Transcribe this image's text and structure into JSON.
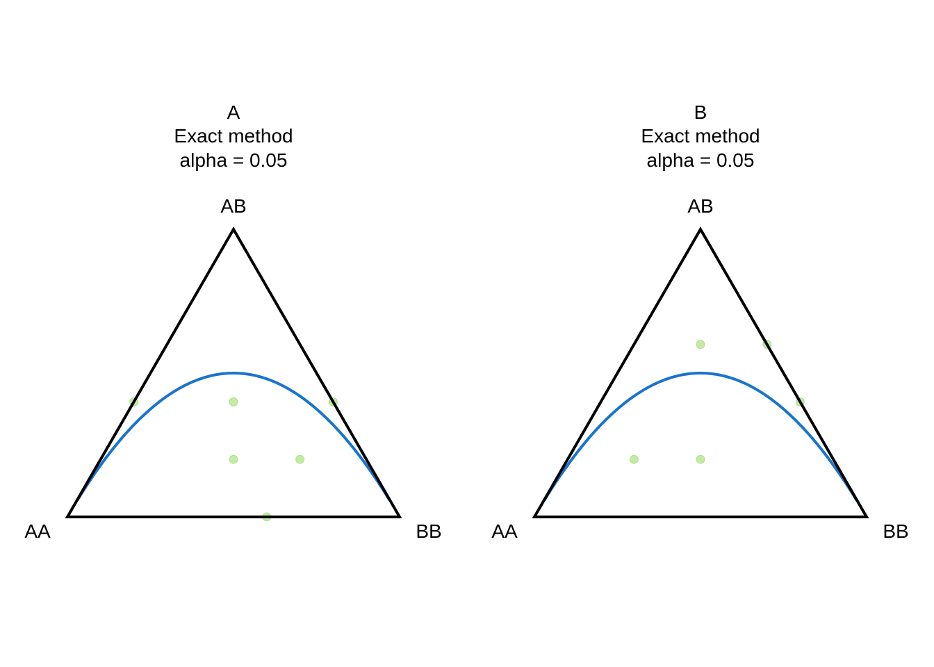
{
  "chart_data": [
    {
      "type": "scatter",
      "subtype": "ternary",
      "title_lines": [
        "A",
        "Exact method",
        "alpha = 0.05"
      ],
      "vertices": {
        "left": "AA",
        "top": "AB",
        "right": "BB"
      },
      "point_color": "#7fd13b",
      "curve_color": "#1874cd",
      "curve": "Hardy-Weinberg equilibrium",
      "points": [
        {
          "AA": 0.6,
          "AB": 0.4,
          "BB": 0.0
        },
        {
          "AA": 0.3,
          "AB": 0.4,
          "BB": 0.3
        },
        {
          "AA": 0.0,
          "AB": 0.4,
          "BB": 0.6
        },
        {
          "AA": 0.2,
          "AB": 0.2,
          "BB": 0.6
        },
        {
          "AA": 0.4,
          "AB": 0.0,
          "BB": 0.6
        },
        {
          "AA": 0.4,
          "AB": 0.2,
          "BB": 0.4
        }
      ]
    },
    {
      "type": "scatter",
      "subtype": "ternary",
      "title_lines": [
        "B",
        "Exact method",
        "alpha = 0.05"
      ],
      "vertices": {
        "left": "AA",
        "top": "AB",
        "right": "BB"
      },
      "point_color": "#7fd13b",
      "curve_color": "#1874cd",
      "curve": "Hardy-Weinberg equilibrium",
      "points": [
        {
          "AA": 0.2,
          "AB": 0.6,
          "BB": 0.2
        },
        {
          "AA": 0.0,
          "AB": 0.6,
          "BB": 0.4
        },
        {
          "AA": 0.6,
          "AB": 0.2,
          "BB": 0.2
        },
        {
          "AA": 0.4,
          "AB": 0.2,
          "BB": 0.4
        },
        {
          "AA": 0.0,
          "AB": 0.4,
          "BB": 0.6
        }
      ]
    }
  ]
}
